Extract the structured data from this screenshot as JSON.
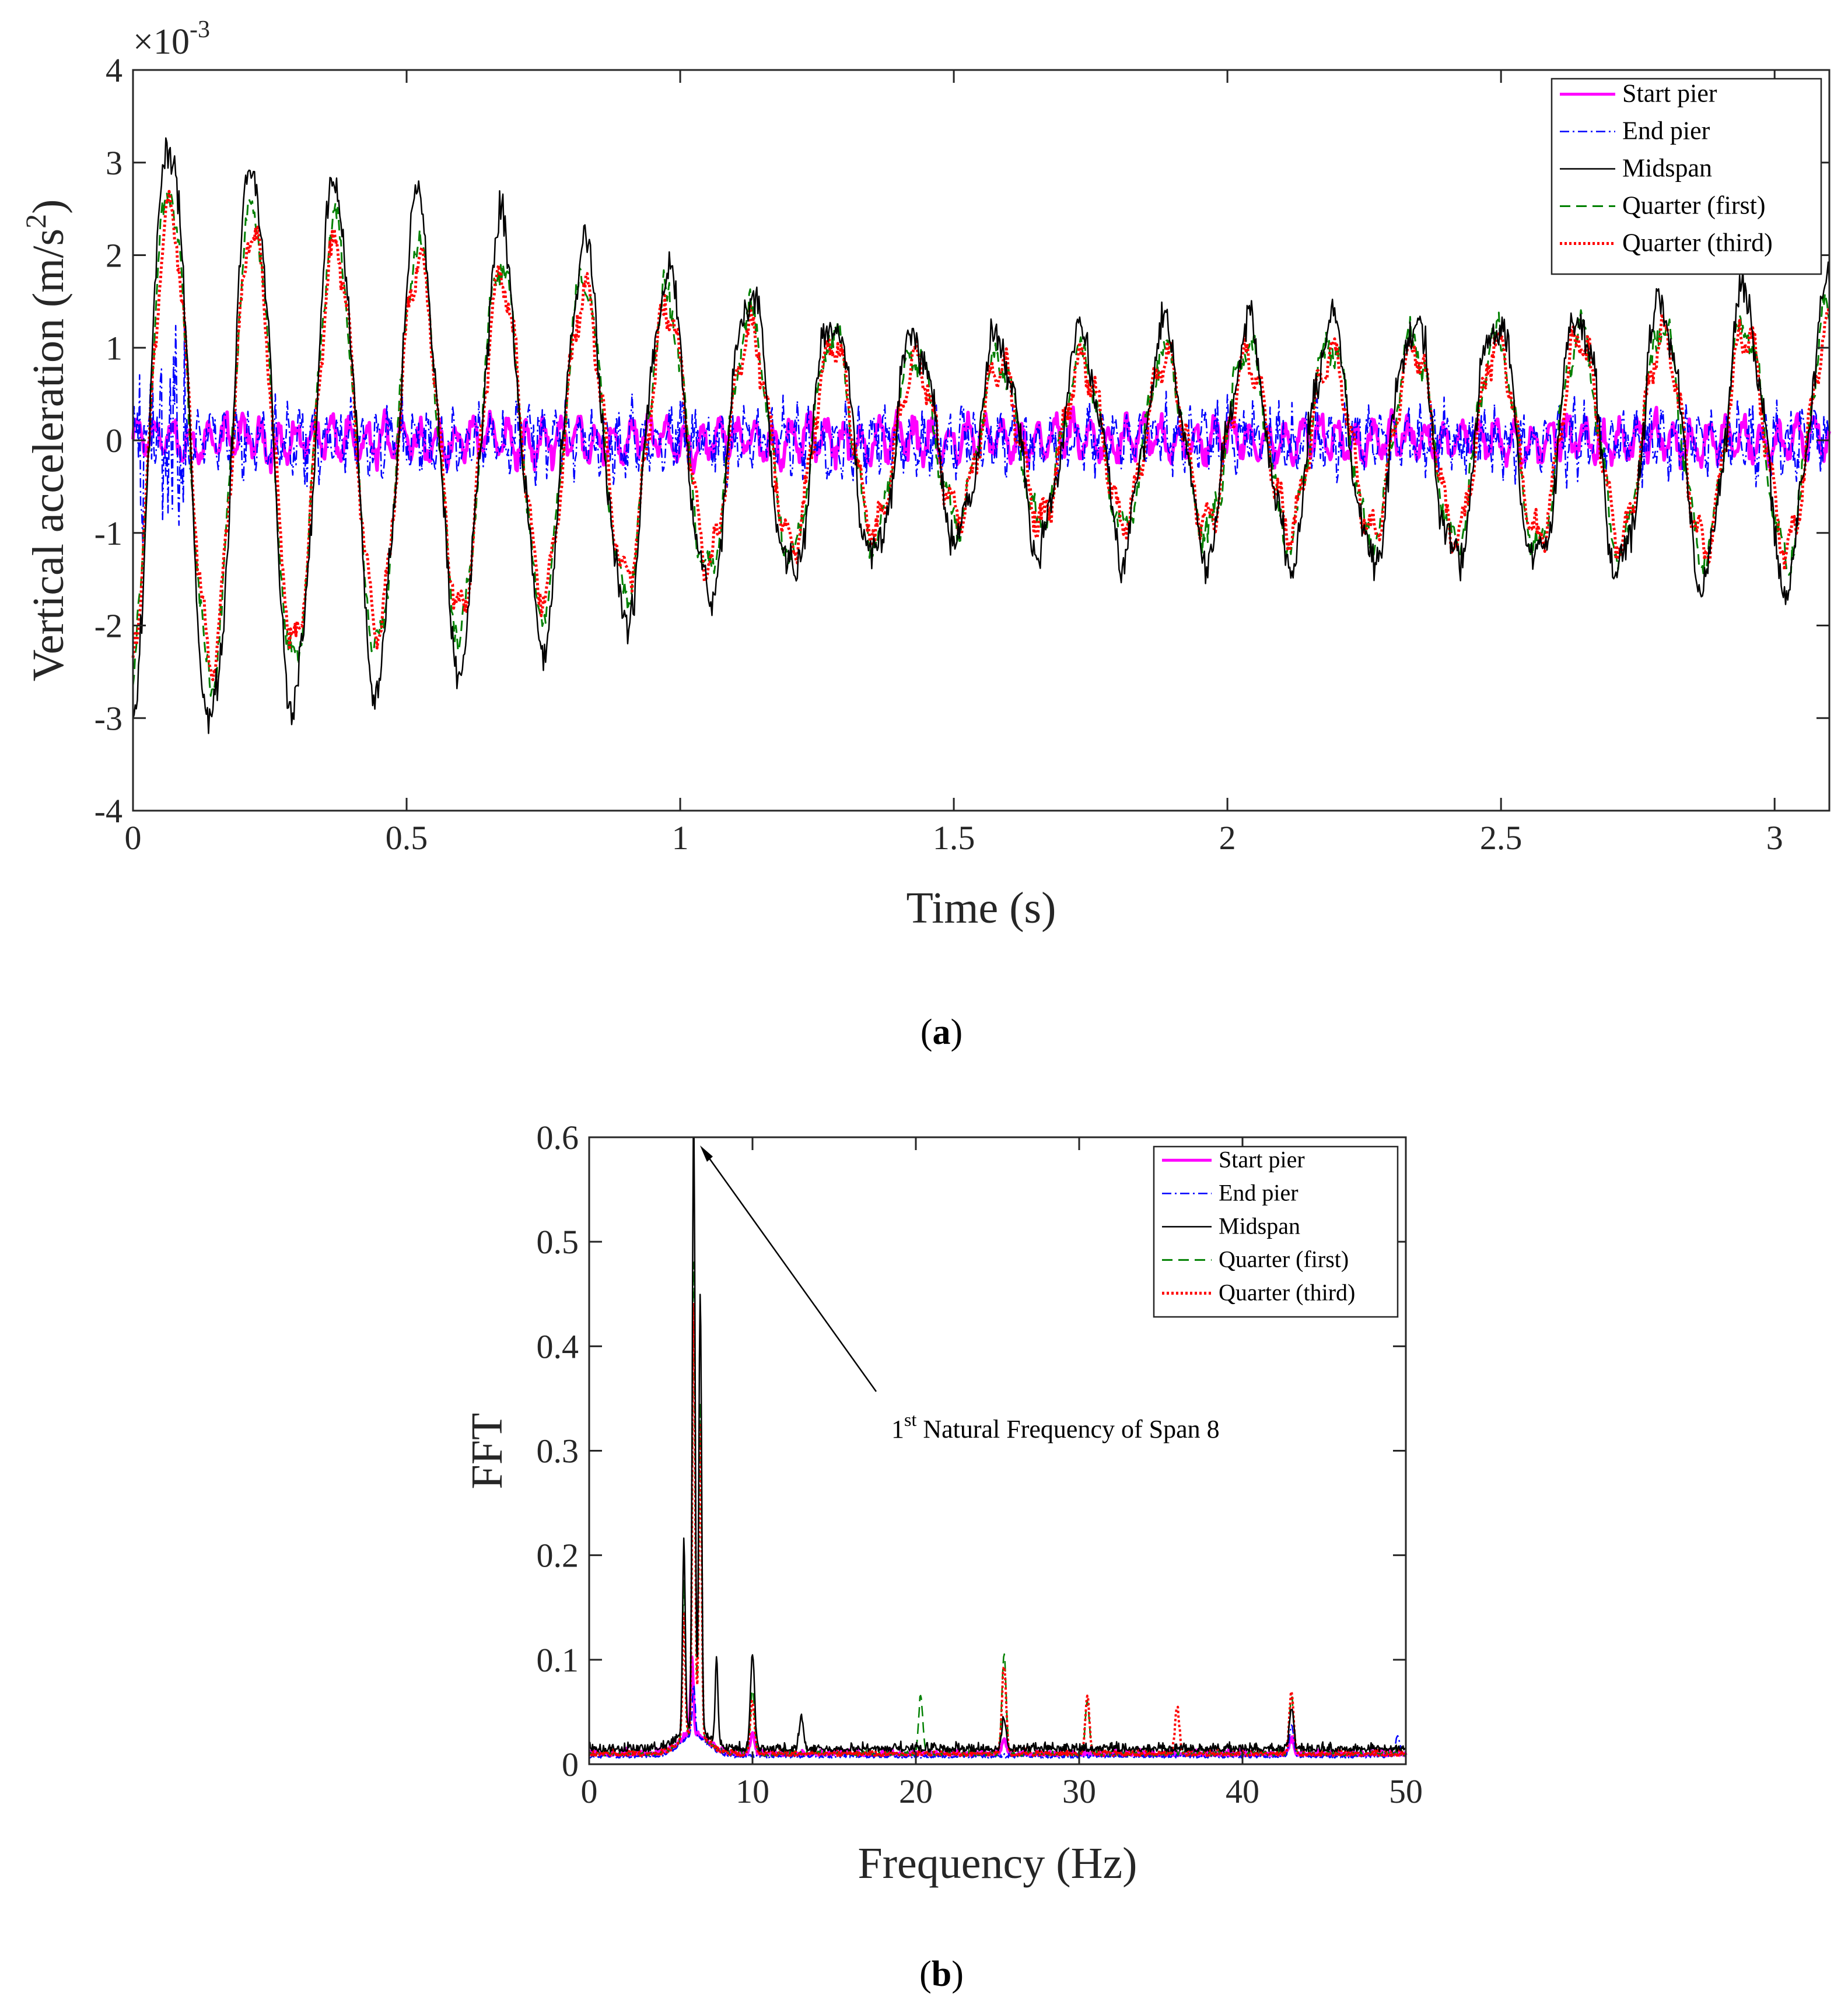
{
  "panel_a": {
    "caption": "a",
    "exponent": "×10",
    "exponent_power": "-3",
    "ylabel": "Vertical acceleration (m/s",
    "ylabel_sup": "2",
    "ylabel_end": ")",
    "xlabel": "Time (s)"
  },
  "panel_b": {
    "caption": "b",
    "ylabel": "FFT",
    "xlabel": "Frequency (Hz)",
    "annotation": "Natural Frequency of Span 8",
    "annotation_prefix": "1",
    "annotation_sup": "st"
  },
  "legend": [
    "Start pier",
    "End pier",
    "Midspan",
    "Quarter (first)",
    "Quarter (third)"
  ],
  "colors": {
    "start_pier": "#ff00ff",
    "end_pier": "#0000ff",
    "midspan": "#000000",
    "quarter_first": "#008000",
    "quarter_third": "#ff0000"
  },
  "chart_data": [
    {
      "type": "line",
      "title": "",
      "xlabel": "Time (s)",
      "ylabel": "Vertical acceleration (m/s^2)",
      "y_multiplier": "×10^-3",
      "xlim": [
        0,
        3.1
      ],
      "ylim": [
        -4,
        4
      ],
      "xticks": [
        0,
        0.5,
        1,
        1.5,
        2,
        2.5,
        3
      ],
      "xtick_labels": [
        "0",
        "0.5",
        "1",
        "1.5",
        "2",
        "2.5",
        "3"
      ],
      "yticks": [
        -4,
        -3,
        -2,
        -1,
        0,
        1,
        2,
        3,
        4
      ],
      "ytick_labels": [
        "-4",
        "-3",
        "-2",
        "-1",
        "0",
        "1",
        "2",
        "3",
        "4"
      ],
      "grid": false,
      "legend_position": "top-right",
      "peaks_midspan": [
        {
          "x": 0.12,
          "y": 3.58
        },
        {
          "x": 0.19,
          "y": -3.82
        },
        {
          "x": 0.26,
          "y": 3.45
        },
        {
          "x": 0.35,
          "y": -3.68
        },
        {
          "x": 0.42,
          "y": 3.45
        },
        {
          "x": 0.5,
          "y": -3.35
        },
        {
          "x": 0.57,
          "y": 2.85
        },
        {
          "x": 0.72,
          "y": 2.85
        },
        {
          "x": 1.0,
          "y": 1.8
        },
        {
          "x": 2.0,
          "y": 2.0
        },
        {
          "x": 2.3,
          "y": 1.9
        },
        {
          "x": 2.9,
          "y": 1.7
        }
      ],
      "series": [
        {
          "name": "Start pier",
          "envelope": [
            0.0,
            0.8
          ],
          "style": "solid"
        },
        {
          "name": "End pier",
          "envelope": [
            0.0,
            1.9
          ],
          "style": "dash-dot"
        },
        {
          "name": "Midspan",
          "envelope": [
            -3.82,
            3.58
          ],
          "style": "solid"
        },
        {
          "name": "Quarter (first)",
          "envelope": [
            -2.9,
            3.2
          ],
          "style": "dashed"
        },
        {
          "name": "Quarter (third)",
          "envelope": [
            -2.7,
            3.1
          ],
          "style": "dotted"
        }
      ]
    },
    {
      "type": "line",
      "title": "",
      "xlabel": "Frequency (Hz)",
      "ylabel": "FFT",
      "xlim": [
        0,
        50
      ],
      "ylim": [
        0,
        0.6
      ],
      "xticks": [
        0,
        10,
        20,
        30,
        40,
        50
      ],
      "xtick_labels": [
        "0",
        "10",
        "20",
        "30",
        "40",
        "50"
      ],
      "yticks": [
        0,
        0.1,
        0.2,
        0.3,
        0.4,
        0.5,
        0.6
      ],
      "ytick_labels": [
        "0",
        "0.1",
        "0.2",
        "0.3",
        "0.4",
        "0.5",
        "0.6"
      ],
      "grid": false,
      "legend_position": "top-right",
      "annotation_points_to": {
        "x": 6.4,
        "y": 0.59
      },
      "series": [
        {
          "name": "Start pier",
          "peaks": [
            {
              "x": 6.3,
              "y": 0.07
            },
            {
              "x": 10.0,
              "y": 0.02
            },
            {
              "x": 25.4,
              "y": 0.015
            },
            {
              "x": 43.0,
              "y": 0.015
            }
          ]
        },
        {
          "name": "End pier",
          "peaks": [
            {
              "x": 6.4,
              "y": 0.05
            },
            {
              "x": 43.0,
              "y": 0.03
            },
            {
              "x": 49.5,
              "y": 0.02
            }
          ]
        },
        {
          "name": "Midspan",
          "peaks": [
            {
              "x": 5.8,
              "y": 0.18
            },
            {
              "x": 6.4,
              "y": 0.59
            },
            {
              "x": 6.8,
              "y": 0.42
            },
            {
              "x": 7.8,
              "y": 0.08
            },
            {
              "x": 10.0,
              "y": 0.09
            },
            {
              "x": 13.0,
              "y": 0.03
            },
            {
              "x": 25.4,
              "y": 0.03
            },
            {
              "x": 43.0,
              "y": 0.04
            }
          ]
        },
        {
          "name": "Quarter (first)",
          "peaks": [
            {
              "x": 5.8,
              "y": 0.15
            },
            {
              "x": 6.4,
              "y": 0.46
            },
            {
              "x": 6.8,
              "y": 0.32
            },
            {
              "x": 10.0,
              "y": 0.06
            },
            {
              "x": 20.3,
              "y": 0.055
            },
            {
              "x": 25.4,
              "y": 0.095
            },
            {
              "x": 30.5,
              "y": 0.05
            },
            {
              "x": 43.0,
              "y": 0.055
            }
          ]
        },
        {
          "name": "Quarter (third)",
          "peaks": [
            {
              "x": 5.8,
              "y": 0.12
            },
            {
              "x": 6.4,
              "y": 0.42
            },
            {
              "x": 6.8,
              "y": 0.3
            },
            {
              "x": 10.0,
              "y": 0.05
            },
            {
              "x": 25.4,
              "y": 0.085
            },
            {
              "x": 30.5,
              "y": 0.055
            },
            {
              "x": 36.0,
              "y": 0.045
            },
            {
              "x": 43.0,
              "y": 0.06
            }
          ]
        }
      ]
    }
  ]
}
